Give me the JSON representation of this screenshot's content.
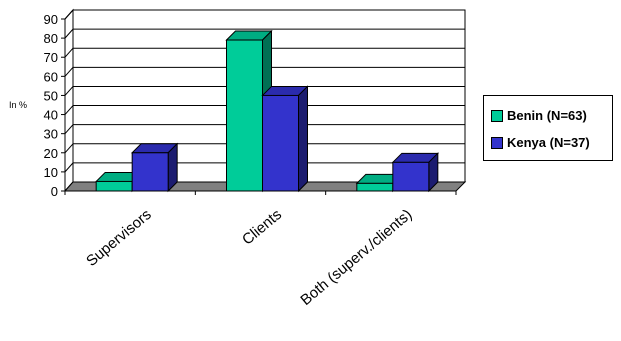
{
  "chart_data": {
    "type": "bar",
    "unit_label": "In %",
    "categories": [
      "Supervisors",
      "Clients",
      "Both (superv./clients)"
    ],
    "series": [
      {
        "name": "Benin (N=63)",
        "values": [
          5,
          79,
          4
        ],
        "color": "#00cc99"
      },
      {
        "name": "Kenya (N=37)",
        "values": [
          20,
          50,
          15
        ],
        "color": "#3333cc"
      }
    ],
    "ylim": [
      0,
      90
    ],
    "yticks": [
      0,
      10,
      20,
      30,
      40,
      50,
      60,
      70,
      80,
      90
    ],
    "grid": true,
    "legend_position": "right"
  }
}
